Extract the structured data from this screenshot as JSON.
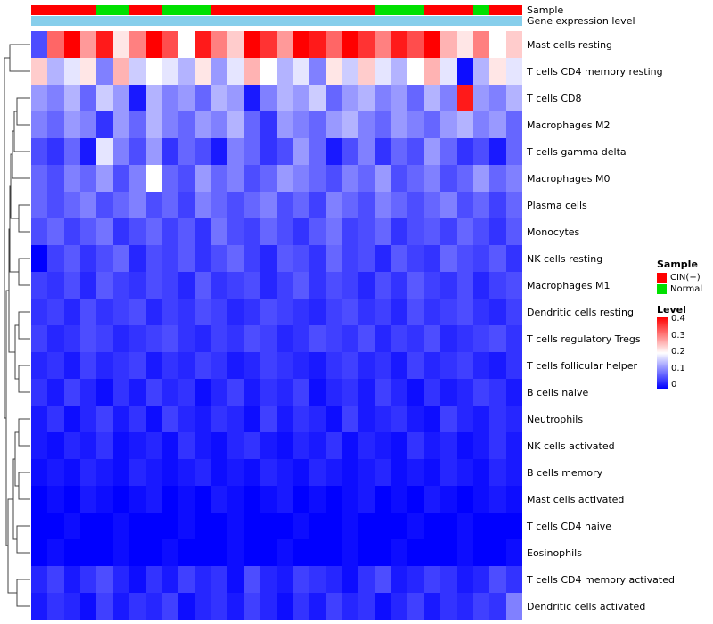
{
  "annotations": {
    "sample_label": "Sample",
    "gene_expr_label": "Gene expression level",
    "gene_expr_color": "#87CEEB",
    "sample_colors": {
      "CIN(+)": "#FF0000",
      "Normal": "#00E000"
    }
  },
  "legend": {
    "sample_title": "Sample",
    "sample_items": [
      {
        "label": "CIN(+)",
        "color": "#FF0000"
      },
      {
        "label": "Normal",
        "color": "#00E000"
      }
    ],
    "level_title": "Level",
    "level_ticks": [
      "0.4",
      "0.3",
      "0.2",
      "0.1",
      "0"
    ],
    "colors": {
      "low": "#0000FF",
      "mid": "#FFFFFF",
      "high": "#FF0000"
    }
  },
  "chart_data": {
    "type": "heatmap",
    "title": "",
    "value_range": [
      0,
      0.4
    ],
    "colormap": "blue-white-red",
    "rows": [
      "Mast cells resting",
      "T cells CD4 memory resting",
      "T cells CD8",
      "Macrophages M2",
      "T cells gamma delta",
      "Macrophages M0",
      "Plasma cells",
      "Monocytes",
      "NK cells resting",
      "Macrophages M1",
      "Dendritic cells resting",
      "T cells regulatory Tregs",
      "T cells follicular helper",
      "B cells naive",
      "Neutrophils",
      "NK cells activated",
      "B cells memory",
      "Mast cells activated",
      "T cells CD4 naive",
      "Eosinophils",
      "T cells CD4 memory activated",
      "Dendritic cells activated"
    ],
    "n_columns": 30,
    "column_annotation": {
      "name": "Sample",
      "groups": [
        "CIN(+)",
        "CIN(+)",
        "CIN(+)",
        "CIN(+)",
        "Normal",
        "Normal",
        "CIN(+)",
        "CIN(+)",
        "Normal",
        "Normal",
        "Normal",
        "CIN(+)",
        "CIN(+)",
        "CIN(+)",
        "CIN(+)",
        "CIN(+)",
        "CIN(+)",
        "CIN(+)",
        "CIN(+)",
        "CIN(+)",
        "CIN(+)",
        "Normal",
        "Normal",
        "Normal",
        "CIN(+)",
        "CIN(+)",
        "CIN(+)",
        "Normal",
        "CIN(+)",
        "CIN(+)"
      ]
    },
    "values": [
      [
        0.06,
        0.32,
        0.4,
        0.28,
        0.38,
        0.22,
        0.3,
        0.4,
        0.34,
        0.2,
        0.38,
        0.3,
        0.24,
        0.4,
        0.36,
        0.28,
        0.4,
        0.38,
        0.32,
        0.4,
        0.36,
        0.3,
        0.38,
        0.34,
        0.4,
        0.26,
        0.22,
        0.3,
        0.2,
        0.24
      ],
      [
        0.24,
        0.14,
        0.18,
        0.22,
        0.1,
        0.26,
        0.16,
        0.2,
        0.18,
        0.14,
        0.22,
        0.12,
        0.18,
        0.26,
        0.2,
        0.14,
        0.18,
        0.1,
        0.22,
        0.16,
        0.24,
        0.18,
        0.14,
        0.2,
        0.26,
        0.18,
        0.01,
        0.14,
        0.22,
        0.18
      ],
      [
        0.12,
        0.1,
        0.14,
        0.08,
        0.16,
        0.12,
        0.02,
        0.14,
        0.1,
        0.12,
        0.08,
        0.14,
        0.12,
        0.02,
        0.1,
        0.14,
        0.12,
        0.16,
        0.08,
        0.12,
        0.14,
        0.1,
        0.12,
        0.08,
        0.14,
        0.1,
        0.38,
        0.12,
        0.1,
        0.14
      ],
      [
        0.1,
        0.08,
        0.12,
        0.1,
        0.04,
        0.12,
        0.08,
        0.14,
        0.1,
        0.08,
        0.12,
        0.1,
        0.14,
        0.08,
        0.04,
        0.12,
        0.1,
        0.08,
        0.12,
        0.14,
        0.1,
        0.08,
        0.12,
        0.1,
        0.08,
        0.12,
        0.14,
        0.1,
        0.12,
        0.08
      ],
      [
        0.06,
        0.04,
        0.08,
        0.02,
        0.18,
        0.1,
        0.06,
        0.12,
        0.04,
        0.08,
        0.06,
        0.02,
        0.1,
        0.08,
        0.04,
        0.06,
        0.12,
        0.08,
        0.02,
        0.06,
        0.1,
        0.04,
        0.08,
        0.06,
        0.12,
        0.08,
        0.04,
        0.06,
        0.02,
        0.08
      ],
      [
        0.08,
        0.06,
        0.1,
        0.08,
        0.12,
        0.06,
        0.1,
        0.2,
        0.08,
        0.06,
        0.12,
        0.08,
        0.1,
        0.06,
        0.08,
        0.12,
        0.1,
        0.08,
        0.06,
        0.1,
        0.08,
        0.12,
        0.06,
        0.08,
        0.1,
        0.06,
        0.08,
        0.12,
        0.08,
        0.1
      ],
      [
        0.08,
        0.06,
        0.08,
        0.1,
        0.06,
        0.08,
        0.1,
        0.06,
        0.08,
        0.05,
        0.1,
        0.08,
        0.06,
        0.08,
        0.1,
        0.06,
        0.08,
        0.05,
        0.1,
        0.08,
        0.06,
        0.1,
        0.08,
        0.06,
        0.08,
        0.1,
        0.06,
        0.08,
        0.05,
        0.08
      ],
      [
        0.06,
        0.08,
        0.05,
        0.07,
        0.09,
        0.04,
        0.06,
        0.08,
        0.05,
        0.07,
        0.04,
        0.09,
        0.06,
        0.05,
        0.08,
        0.06,
        0.04,
        0.07,
        0.09,
        0.05,
        0.06,
        0.08,
        0.04,
        0.06,
        0.07,
        0.05,
        0.08,
        0.06,
        0.04,
        0.07
      ],
      [
        0.0,
        0.05,
        0.07,
        0.04,
        0.06,
        0.08,
        0.03,
        0.06,
        0.05,
        0.07,
        0.04,
        0.06,
        0.08,
        0.05,
        0.03,
        0.07,
        0.06,
        0.04,
        0.08,
        0.05,
        0.06,
        0.03,
        0.07,
        0.05,
        0.04,
        0.08,
        0.06,
        0.05,
        0.07,
        0.04
      ],
      [
        0.05,
        0.04,
        0.06,
        0.03,
        0.07,
        0.05,
        0.04,
        0.06,
        0.05,
        0.03,
        0.07,
        0.04,
        0.05,
        0.06,
        0.03,
        0.05,
        0.07,
        0.04,
        0.06,
        0.05,
        0.03,
        0.06,
        0.04,
        0.07,
        0.05,
        0.04,
        0.06,
        0.03,
        0.05,
        0.06
      ],
      [
        0.04,
        0.05,
        0.03,
        0.06,
        0.04,
        0.05,
        0.06,
        0.03,
        0.05,
        0.04,
        0.06,
        0.05,
        0.03,
        0.04,
        0.06,
        0.05,
        0.04,
        0.03,
        0.05,
        0.06,
        0.04,
        0.05,
        0.03,
        0.06,
        0.04,
        0.05,
        0.06,
        0.04,
        0.03,
        0.05
      ],
      [
        0.05,
        0.03,
        0.04,
        0.06,
        0.05,
        0.03,
        0.04,
        0.05,
        0.06,
        0.04,
        0.03,
        0.05,
        0.04,
        0.06,
        0.05,
        0.03,
        0.04,
        0.06,
        0.05,
        0.04,
        0.06,
        0.03,
        0.05,
        0.04,
        0.06,
        0.03,
        0.04,
        0.05,
        0.06,
        0.04
      ],
      [
        0.03,
        0.04,
        0.02,
        0.05,
        0.03,
        0.04,
        0.05,
        0.02,
        0.04,
        0.03,
        0.05,
        0.04,
        0.02,
        0.03,
        0.05,
        0.04,
        0.03,
        0.02,
        0.04,
        0.05,
        0.03,
        0.04,
        0.02,
        0.05,
        0.03,
        0.04,
        0.05,
        0.03,
        0.02,
        0.04
      ],
      [
        0.04,
        0.02,
        0.05,
        0.03,
        0.01,
        0.04,
        0.02,
        0.05,
        0.03,
        0.04,
        0.01,
        0.03,
        0.05,
        0.02,
        0.04,
        0.03,
        0.05,
        0.01,
        0.03,
        0.04,
        0.02,
        0.05,
        0.03,
        0.01,
        0.04,
        0.02,
        0.03,
        0.05,
        0.04,
        0.02
      ],
      [
        0.02,
        0.04,
        0.01,
        0.03,
        0.05,
        0.02,
        0.04,
        0.01,
        0.05,
        0.03,
        0.02,
        0.04,
        0.03,
        0.01,
        0.05,
        0.02,
        0.04,
        0.03,
        0.01,
        0.05,
        0.02,
        0.03,
        0.04,
        0.02,
        0.01,
        0.05,
        0.03,
        0.02,
        0.04,
        0.03
      ],
      [
        0.02,
        0.01,
        0.03,
        0.02,
        0.04,
        0.01,
        0.02,
        0.03,
        0.01,
        0.04,
        0.02,
        0.01,
        0.03,
        0.04,
        0.02,
        0.01,
        0.03,
        0.02,
        0.04,
        0.01,
        0.03,
        0.02,
        0.01,
        0.04,
        0.02,
        0.03,
        0.01,
        0.02,
        0.04,
        0.02
      ],
      [
        0.01,
        0.02,
        0.01,
        0.03,
        0.02,
        0.01,
        0.03,
        0.02,
        0.01,
        0.02,
        0.03,
        0.01,
        0.02,
        0.01,
        0.03,
        0.02,
        0.01,
        0.03,
        0.02,
        0.01,
        0.02,
        0.03,
        0.01,
        0.02,
        0.01,
        0.03,
        0.02,
        0.01,
        0.03,
        0.02
      ],
      [
        0.0,
        0.01,
        0.0,
        0.02,
        0.01,
        0.0,
        0.01,
        0.02,
        0.0,
        0.01,
        0.0,
        0.02,
        0.01,
        0.0,
        0.01,
        0.02,
        0.0,
        0.01,
        0.0,
        0.01,
        0.02,
        0.0,
        0.01,
        0.0,
        0.02,
        0.01,
        0.0,
        0.01,
        0.02,
        0.01
      ],
      [
        0.0,
        0.0,
        0.01,
        0.0,
        0.0,
        0.01,
        0.0,
        0.0,
        0.0,
        0.01,
        0.0,
        0.0,
        0.01,
        0.0,
        0.0,
        0.0,
        0.01,
        0.0,
        0.0,
        0.01,
        0.0,
        0.0,
        0.0,
        0.01,
        0.0,
        0.0,
        0.01,
        0.0,
        0.0,
        0.0
      ],
      [
        0.0,
        0.01,
        0.0,
        0.0,
        0.0,
        0.01,
        0.0,
        0.0,
        0.01,
        0.0,
        0.0,
        0.0,
        0.01,
        0.0,
        0.0,
        0.01,
        0.0,
        0.0,
        0.0,
        0.01,
        0.0,
        0.0,
        0.01,
        0.0,
        0.0,
        0.0,
        0.01,
        0.0,
        0.0,
        0.01
      ],
      [
        0.03,
        0.05,
        0.02,
        0.04,
        0.06,
        0.03,
        0.01,
        0.04,
        0.02,
        0.05,
        0.03,
        0.04,
        0.01,
        0.06,
        0.03,
        0.02,
        0.05,
        0.04,
        0.03,
        0.01,
        0.04,
        0.06,
        0.02,
        0.03,
        0.05,
        0.04,
        0.02,
        0.03,
        0.06,
        0.04
      ],
      [
        0.02,
        0.04,
        0.03,
        0.01,
        0.05,
        0.02,
        0.04,
        0.03,
        0.05,
        0.01,
        0.03,
        0.04,
        0.02,
        0.05,
        0.03,
        0.01,
        0.04,
        0.02,
        0.05,
        0.03,
        0.04,
        0.01,
        0.03,
        0.05,
        0.02,
        0.04,
        0.03,
        0.05,
        0.04,
        0.1
      ]
    ]
  }
}
